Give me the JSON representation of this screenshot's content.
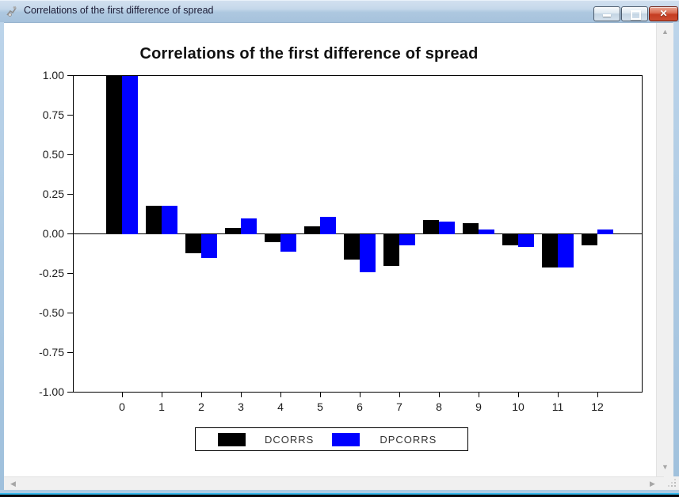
{
  "window": {
    "title": "Correlations of the first difference of spread",
    "icons": {
      "app": "chart-window-icon",
      "minimize": "minimize-icon",
      "maximize": "maximize-icon",
      "close": "close-icon"
    },
    "close_glyph": "✕"
  },
  "scrollbars": {
    "up_arrow": "▲",
    "down_arrow": "▼",
    "left_arrow": "◀",
    "right_arrow": "▶"
  },
  "colors": {
    "bar_black": "#000000",
    "bar_blue": "#0000ff",
    "titlebar_text": "#1b1b35",
    "close_button_red": "#c53d22",
    "scrollbar_track": "#f0f0f0"
  },
  "chart_data": {
    "type": "bar",
    "title": "Correlations of the first difference of spread",
    "categories": [
      "0",
      "1",
      "2",
      "3",
      "4",
      "5",
      "6",
      "7",
      "8",
      "9",
      "10",
      "11",
      "12"
    ],
    "series": [
      {
        "name": "DCORRS",
        "color": "#000000",
        "values": [
          1.0,
          0.18,
          -0.12,
          0.04,
          -0.05,
          0.05,
          -0.16,
          -0.2,
          0.09,
          0.07,
          -0.07,
          -0.21,
          -0.07
        ]
      },
      {
        "name": "DPCORRS",
        "color": "#0000ff",
        "values": [
          1.0,
          0.18,
          -0.15,
          0.1,
          -0.11,
          0.11,
          -0.24,
          -0.07,
          0.08,
          0.03,
          -0.08,
          -0.21,
          0.03
        ]
      }
    ],
    "xlabel": "",
    "ylabel": "",
    "ylim": [
      -1.0,
      1.0
    ],
    "yticks": [
      "1.00",
      "0.75",
      "0.50",
      "0.25",
      "0.00",
      "-0.25",
      "-0.50",
      "-0.75",
      "-1.00"
    ],
    "grid": false,
    "legend_position": "bottom"
  }
}
